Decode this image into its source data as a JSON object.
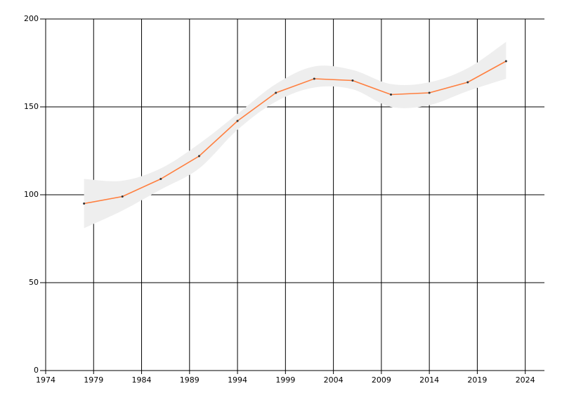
{
  "chart_data": {
    "type": "line",
    "x": [
      1978,
      1982,
      1986,
      1990,
      1994,
      1998,
      2002,
      2006,
      2010,
      2014,
      2018,
      2022
    ],
    "series": [
      {
        "color": "#ff7f3f",
        "values": [
          95,
          99,
          109,
          122,
          142,
          158,
          166,
          165,
          157,
          158,
          164,
          176
        ]
      }
    ],
    "band": {
      "color": "#eeeeee",
      "lower": [
        81,
        91,
        103,
        115,
        137,
        153,
        161,
        160,
        150,
        151,
        159,
        166
      ],
      "upper": [
        109,
        108,
        115,
        129,
        146,
        163,
        173,
        171,
        163,
        164,
        172,
        187
      ]
    },
    "xlim": [
      1974,
      2026
    ],
    "xticks": [
      1974,
      1979,
      1984,
      1989,
      1994,
      1999,
      2004,
      2009,
      2014,
      2019,
      2024
    ],
    "ylim": [
      0,
      200
    ],
    "yticks": [
      0,
      50,
      100,
      150,
      200
    ],
    "grid": true
  }
}
